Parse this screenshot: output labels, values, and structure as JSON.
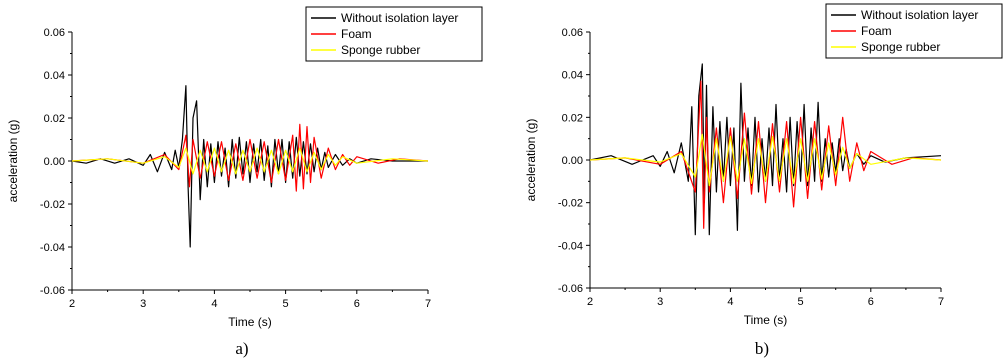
{
  "chart_data": [
    {
      "type": "line",
      "panel_label": "a)",
      "xlabel": "Time (s)",
      "ylabel": "acceleration (g)",
      "xlim": [
        2,
        7
      ],
      "ylim": [
        -0.06,
        0.06
      ],
      "x_ticks": [
        "2",
        "3",
        "4",
        "5",
        "6",
        "7"
      ],
      "y_ticks": [
        "-0.06",
        "-0.04",
        "-0.02",
        "0.00",
        "0.02",
        "0.04",
        "0.06"
      ],
      "legend_position": "top-right",
      "series": [
        {
          "name": "Without isolation layer",
          "color": "#000000",
          "x": [
            2.0,
            2.2,
            2.4,
            2.6,
            2.8,
            3.0,
            3.1,
            3.2,
            3.3,
            3.4,
            3.45,
            3.5,
            3.55,
            3.6,
            3.63,
            3.66,
            3.7,
            3.75,
            3.8,
            3.85,
            3.9,
            3.95,
            4.0,
            4.05,
            4.1,
            4.15,
            4.2,
            4.25,
            4.3,
            4.35,
            4.4,
            4.45,
            4.5,
            4.55,
            4.6,
            4.65,
            4.7,
            4.75,
            4.8,
            4.85,
            4.9,
            4.95,
            5.0,
            5.05,
            5.1,
            5.15,
            5.2,
            5.25,
            5.3,
            5.35,
            5.4,
            5.45,
            5.5,
            5.55,
            5.6,
            5.7,
            5.8,
            5.9,
            6.0,
            6.2,
            6.5,
            7.0
          ],
          "y": [
            0.0,
            -0.001,
            0.001,
            -0.001,
            0.001,
            -0.002,
            0.003,
            -0.005,
            0.004,
            -0.004,
            0.005,
            -0.003,
            0.01,
            0.035,
            -0.012,
            -0.04,
            0.02,
            0.028,
            -0.018,
            0.01,
            -0.012,
            0.008,
            -0.01,
            0.009,
            -0.007,
            0.006,
            -0.012,
            0.01,
            -0.008,
            0.011,
            -0.006,
            0.009,
            -0.01,
            0.008,
            -0.005,
            0.01,
            -0.009,
            0.007,
            -0.012,
            0.01,
            -0.006,
            0.01,
            -0.01,
            0.009,
            -0.008,
            0.011,
            -0.007,
            0.009,
            -0.006,
            0.008,
            -0.005,
            0.006,
            -0.004,
            0.004,
            -0.003,
            0.003,
            -0.002,
            0.001,
            -0.001,
            0.001,
            0.0,
            0.0
          ]
        },
        {
          "name": "Foam",
          "color": "#ff0000",
          "x": [
            2.0,
            2.5,
            3.0,
            3.3,
            3.5,
            3.6,
            3.65,
            3.7,
            3.8,
            3.9,
            4.0,
            4.1,
            4.2,
            4.3,
            4.4,
            4.5,
            4.6,
            4.7,
            4.8,
            4.9,
            5.0,
            5.1,
            5.15,
            5.2,
            5.25,
            5.3,
            5.35,
            5.4,
            5.5,
            5.6,
            5.7,
            5.8,
            5.9,
            6.0,
            6.3,
            6.6,
            7.0
          ],
          "y": [
            0.0,
            0.001,
            -0.001,
            0.003,
            -0.004,
            0.012,
            -0.012,
            0.01,
            -0.008,
            0.009,
            -0.007,
            0.009,
            -0.009,
            0.008,
            -0.009,
            0.01,
            -0.008,
            0.009,
            -0.01,
            0.01,
            -0.009,
            0.012,
            -0.014,
            0.017,
            -0.013,
            0.016,
            -0.01,
            0.011,
            -0.008,
            0.006,
            -0.004,
            0.003,
            -0.002,
            0.002,
            -0.001,
            0.001,
            0.0
          ]
        },
        {
          "name": "Sponge rubber",
          "color": "#ffff00",
          "x": [
            2.0,
            2.5,
            3.0,
            3.3,
            3.5,
            3.6,
            3.7,
            3.8,
            3.9,
            4.0,
            4.1,
            4.2,
            4.3,
            4.4,
            4.5,
            4.6,
            4.7,
            4.8,
            4.9,
            5.0,
            5.1,
            5.2,
            5.3,
            5.4,
            5.5,
            5.6,
            5.7,
            5.8,
            6.0,
            6.5,
            7.0
          ],
          "y": [
            0.0,
            0.001,
            -0.001,
            0.002,
            -0.003,
            0.006,
            -0.006,
            0.005,
            -0.005,
            0.006,
            -0.005,
            0.005,
            -0.006,
            0.005,
            -0.005,
            0.006,
            -0.005,
            0.005,
            -0.006,
            0.005,
            -0.005,
            0.006,
            -0.005,
            0.004,
            -0.004,
            0.003,
            -0.002,
            0.002,
            -0.001,
            0.001,
            0.0
          ]
        }
      ]
    },
    {
      "type": "line",
      "panel_label": "b)",
      "xlabel": "Time (s)",
      "ylabel": "acceleration (g)",
      "xlim": [
        2,
        7
      ],
      "ylim": [
        -0.06,
        0.06
      ],
      "x_ticks": [
        "2",
        "3",
        "4",
        "5",
        "6",
        "7"
      ],
      "y_ticks": [
        "-0.06",
        "-0.04",
        "-0.02",
        "0.00",
        "0.02",
        "0.04",
        "0.06"
      ],
      "legend_position": "top-right",
      "series": [
        {
          "name": "Without isolation layer",
          "color": "#000000",
          "x": [
            2.0,
            2.3,
            2.6,
            2.9,
            3.0,
            3.1,
            3.2,
            3.3,
            3.4,
            3.45,
            3.5,
            3.55,
            3.6,
            3.63,
            3.66,
            3.7,
            3.75,
            3.8,
            3.85,
            3.9,
            3.95,
            4.0,
            4.05,
            4.1,
            4.15,
            4.2,
            4.25,
            4.3,
            4.35,
            4.4,
            4.45,
            4.5,
            4.55,
            4.6,
            4.65,
            4.7,
            4.75,
            4.8,
            4.85,
            4.9,
            4.95,
            5.0,
            5.05,
            5.1,
            5.15,
            5.2,
            5.25,
            5.3,
            5.35,
            5.4,
            5.45,
            5.5,
            5.55,
            5.6,
            5.65,
            5.7,
            5.8,
            5.9,
            6.0,
            6.2,
            6.5,
            7.0
          ],
          "y": [
            0.0,
            0.002,
            -0.002,
            0.002,
            -0.003,
            0.004,
            -0.006,
            0.008,
            -0.01,
            0.025,
            -0.035,
            0.03,
            0.045,
            -0.02,
            0.035,
            -0.035,
            0.025,
            -0.015,
            0.018,
            -0.01,
            0.02,
            -0.012,
            0.015,
            -0.033,
            0.036,
            -0.01,
            0.015,
            -0.012,
            0.02,
            -0.015,
            0.01,
            -0.01,
            0.015,
            -0.012,
            0.026,
            -0.01,
            0.01,
            -0.015,
            0.02,
            -0.012,
            0.018,
            -0.01,
            0.026,
            -0.012,
            0.015,
            -0.01,
            0.027,
            -0.01,
            0.01,
            -0.008,
            0.008,
            -0.006,
            0.01,
            -0.005,
            0.005,
            -0.004,
            0.003,
            -0.002,
            0.002,
            -0.001,
            0.001,
            0.002
          ]
        },
        {
          "name": "Foam",
          "color": "#ff0000",
          "x": [
            2.0,
            2.5,
            3.0,
            3.3,
            3.5,
            3.58,
            3.62,
            3.66,
            3.7,
            3.8,
            3.9,
            4.0,
            4.1,
            4.2,
            4.3,
            4.4,
            4.5,
            4.6,
            4.7,
            4.8,
            4.9,
            5.0,
            5.1,
            5.2,
            5.3,
            5.4,
            5.5,
            5.6,
            5.7,
            5.8,
            5.9,
            6.0,
            6.3,
            6.6,
            7.0
          ],
          "y": [
            0.0,
            0.001,
            -0.002,
            0.004,
            -0.015,
            0.037,
            -0.032,
            0.02,
            -0.015,
            0.015,
            -0.02,
            0.015,
            -0.018,
            0.022,
            -0.016,
            0.018,
            -0.02,
            0.017,
            -0.015,
            0.018,
            -0.022,
            0.02,
            -0.018,
            0.018,
            -0.014,
            0.016,
            -0.012,
            0.02,
            -0.01,
            0.008,
            -0.005,
            0.004,
            -0.002,
            0.001,
            0.0
          ]
        },
        {
          "name": "Sponge rubber",
          "color": "#ffff00",
          "x": [
            2.0,
            2.5,
            3.0,
            3.3,
            3.5,
            3.6,
            3.7,
            3.8,
            3.9,
            4.0,
            4.1,
            4.2,
            4.3,
            4.4,
            4.5,
            4.6,
            4.7,
            4.8,
            4.9,
            5.0,
            5.1,
            5.2,
            5.3,
            5.4,
            5.5,
            5.6,
            5.7,
            5.8,
            6.0,
            6.5,
            7.0
          ],
          "y": [
            0.0,
            0.001,
            -0.001,
            0.003,
            -0.008,
            0.012,
            -0.012,
            0.01,
            -0.01,
            0.011,
            -0.01,
            0.01,
            -0.011,
            0.01,
            -0.01,
            0.011,
            -0.01,
            0.01,
            -0.011,
            0.01,
            -0.01,
            0.01,
            -0.009,
            0.008,
            -0.007,
            0.006,
            -0.004,
            0.003,
            -0.002,
            0.001,
            0.0
          ]
        }
      ]
    }
  ]
}
